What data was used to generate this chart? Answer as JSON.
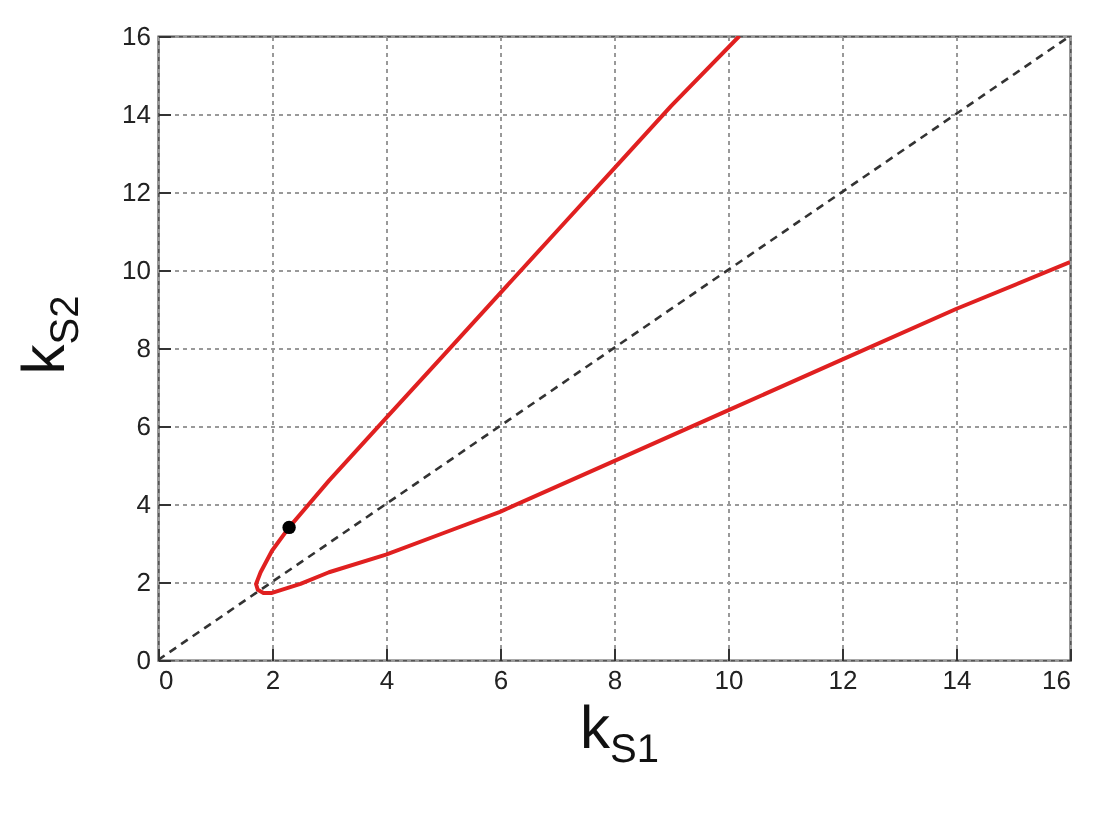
{
  "chart_data": {
    "type": "line",
    "xlabel": "k$_{S1}$",
    "ylabel": "k$_{S2}$",
    "xlim": [
      0,
      16
    ],
    "ylim": [
      0,
      16
    ],
    "xticks": [
      0,
      2,
      4,
      6,
      8,
      10,
      12,
      14,
      16
    ],
    "yticks": [
      0,
      2,
      4,
      6,
      8,
      10,
      12,
      14,
      16
    ],
    "grid": true,
    "series": [
      {
        "type": "line",
        "color": "#e02020",
        "line_style": "solid",
        "x": [
          10.2,
          9,
          8,
          7,
          6,
          5,
          4,
          3,
          2.3,
          2.0,
          1.8,
          1.72,
          1.75,
          1.85,
          2.0,
          2.5,
          3,
          4,
          5,
          6,
          8,
          10,
          12,
          14,
          16
        ],
        "values": [
          16,
          14.2,
          12.6,
          11.0,
          9.4,
          7.8,
          6.2,
          4.6,
          3.4,
          2.8,
          2.25,
          1.95,
          1.8,
          1.72,
          1.72,
          1.95,
          2.25,
          2.7,
          3.25,
          3.8,
          5.1,
          6.4,
          7.7,
          9.0,
          10.2
        ]
      },
      {
        "type": "line",
        "color": "#333333",
        "line_style": "dashed",
        "x": [
          0,
          16
        ],
        "values": [
          0,
          16
        ]
      },
      {
        "type": "scatter",
        "color": "#000000",
        "marker": "circle",
        "x": [
          2.3
        ],
        "values": [
          3.4
        ]
      }
    ]
  }
}
